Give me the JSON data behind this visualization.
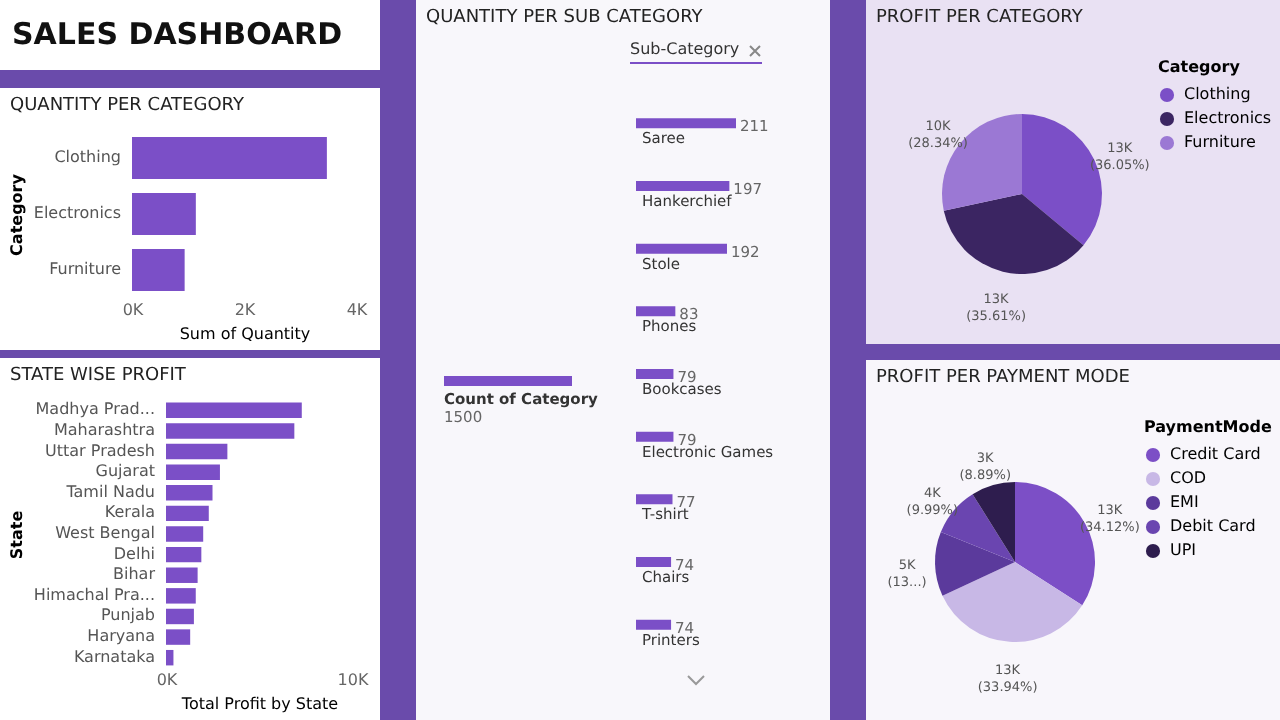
{
  "chart_data": [
    {
      "type": "other",
      "title": "SALES DASHBOARD"
    },
    {
      "type": "bar",
      "orientation": "horizontal",
      "title": "QUANTITY PER CATEGORY",
      "xlabel": "Sum of Quantity",
      "ylabel": "Category",
      "categories": [
        "Clothing",
        "Electronics",
        "Furniture"
      ],
      "values": [
        3480,
        1140,
        940
      ],
      "color": "#7b4fc7",
      "xlim": [
        0,
        4000
      ],
      "xticks": [
        {
          "value": 0,
          "label": "0K"
        },
        {
          "value": 2000,
          "label": "2K"
        },
        {
          "value": 4000,
          "label": "4K"
        }
      ]
    },
    {
      "type": "bar",
      "orientation": "horizontal",
      "title": "STATE WISE PROFIT",
      "xlabel": "Total Profit by State",
      "ylabel": "State",
      "categories": [
        "Madhya Prad...",
        "Maharashtra",
        "Uttar Pradesh",
        "Gujarat",
        "Tamil Nadu",
        "Kerala",
        "West Bengal",
        "Delhi",
        "Bihar",
        "Himachal Pra...",
        "Punjab",
        "Haryana",
        "Karnataka"
      ],
      "values": [
        7300,
        6900,
        3300,
        2900,
        2500,
        2300,
        2000,
        1900,
        1700,
        1600,
        1500,
        1300,
        400
      ],
      "color": "#7b4fc7",
      "xlim": [
        0,
        10000
      ],
      "xticks": [
        {
          "value": 0,
          "label": "0K"
        },
        {
          "value": 10000,
          "label": "10K"
        }
      ]
    },
    {
      "type": "bar",
      "orientation": "horizontal",
      "title": "QUANTITY PER SUB CATEGORY",
      "categories": [
        "Saree",
        "Hankerchief",
        "Stole",
        "Phones",
        "Bookcases",
        "Electronic Games",
        "T-shirt",
        "Chairs",
        "Printers"
      ],
      "values": [
        211,
        197,
        192,
        83,
        79,
        79,
        77,
        74,
        74
      ],
      "data_labels": true,
      "color": "#7b4fc7",
      "annotations": [
        "Sub-Category",
        "Count of Category",
        "1500"
      ]
    },
    {
      "type": "pie",
      "title": "PROFIT PER CATEGORY",
      "legend_title": "Category",
      "legend": "right",
      "categories": [
        "Clothing",
        "Electronics",
        "Furniture"
      ],
      "values": [
        36.05,
        35.61,
        28.34
      ],
      "colors": [
        "#7b4fc7",
        "#3b2562",
        "#9b78d4"
      ],
      "value_labels": [
        "13K (36.05%)",
        "13K (35.61%)",
        "10K (28.34%)"
      ]
    },
    {
      "type": "pie",
      "title": "PROFIT PER PAYMENT MODE",
      "legend_title": "PaymentMode",
      "legend": "right",
      "categories": [
        "Credit Card",
        "COD",
        "EMI",
        "Debit Card",
        "UPI"
      ],
      "values": [
        34.12,
        33.94,
        13.06,
        9.99,
        8.89
      ],
      "colors": [
        "#7c4fc6",
        "#c8b8e6",
        "#5b3a9c",
        "#6a45b0",
        "#2e1d4e"
      ],
      "value_labels": [
        "13K (34.12%)",
        "13K (33.94%)",
        "5K (13...)",
        "4K (9.99%)",
        "3K (8.89%)"
      ]
    }
  ]
}
